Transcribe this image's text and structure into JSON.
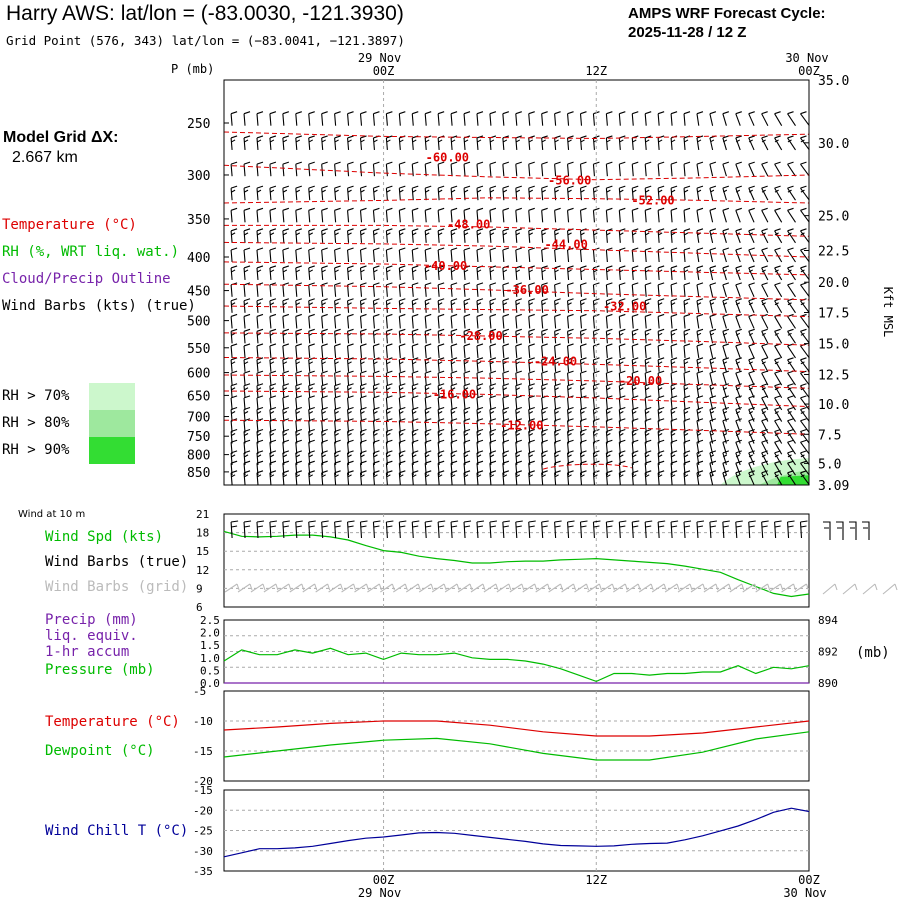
{
  "header": {
    "title": "Harry AWS:  lat/lon = (-83.0030, -121.3930)",
    "grid_point": "Grid Point (576, 343) lat/lon = (−83.0041, −121.3897)",
    "cycle_label": "AMPS WRF Forecast Cycle:",
    "cycle_value": "2025-11-28 / 12  Z",
    "model_grid_label": "Model Grid ΔX:",
    "model_grid_value": "2.667 km"
  },
  "colors": {
    "temperature": "#dd0000",
    "rh": "#00bb00",
    "cloud": "#7722aa",
    "wind_chill": "#000099",
    "rh70": "#ccf7cc",
    "rh80": "#9ee89e",
    "rh90": "#33dd33",
    "grid": "#aaaaaa",
    "wind_grid": "#bbbbbb"
  },
  "legends": {
    "profile": [
      {
        "label": "Temperature (°C)",
        "color": "#dd0000"
      },
      {
        "label": "RH (%, WRT liq. wat.)",
        "color": "#00bb00"
      },
      {
        "label": "Cloud/Precip Outline",
        "color": "#7722aa"
      },
      {
        "label": "Wind Barbs (kts) (true)",
        "color": "#000000"
      }
    ],
    "rh_boxes": [
      {
        "label": "RH > 70%",
        "color": "#ccf7cc"
      },
      {
        "label": "RH > 80%",
        "color": "#9ee89e"
      },
      {
        "label": "RH > 90%",
        "color": "#33dd33"
      }
    ],
    "wind_panel_title": "Wind at 10 m",
    "wind": [
      {
        "label": "Wind Spd (kts)",
        "color": "#00bb00"
      },
      {
        "label": "Wind Barbs (true)",
        "color": "#000000"
      },
      {
        "label": "Wind Barbs (grid)",
        "color": "#bbbbbb"
      }
    ],
    "precip": [
      {
        "label": "Precip (mm)",
        "color": "#7722aa"
      },
      {
        "label": "liq. equiv.",
        "color": "#7722aa"
      },
      {
        "label": "1-hr accum",
        "color": "#7722aa"
      },
      {
        "label": "Pressure (mb)",
        "color": "#00bb00"
      }
    ],
    "temp": [
      {
        "label": "Temperature (°C)",
        "color": "#dd0000"
      },
      {
        "label": "Dewpoint (°C)",
        "color": "#00bb00"
      }
    ],
    "chill": [
      {
        "label": "Wind Chill T (°C)",
        "color": "#000099"
      }
    ]
  },
  "chart_data": [
    {
      "type": "line",
      "name": "vertical-profile",
      "x_time_labels": [
        {
          "date": "29 Nov",
          "hour": "00Z",
          "hours": 12
        },
        {
          "date": "",
          "hour": "12Z",
          "hours": 24
        },
        {
          "date": "30 Nov",
          "hour": "00Z",
          "hours": 36
        }
      ],
      "x_range_hours": [
        3,
        36
      ],
      "y_left_title": "P (mb)",
      "y_left_ticks": [
        250,
        300,
        350,
        400,
        450,
        500,
        550,
        600,
        650,
        700,
        750,
        800,
        850
      ],
      "y_right_title": "Kft MSL",
      "y_right_ticks": [
        {
          "label": "35.0",
          "p": 215
        },
        {
          "label": "30.0",
          "p": 268
        },
        {
          "label": "25.0",
          "p": 346
        },
        {
          "label": "22.5",
          "p": 391
        },
        {
          "label": "20.0",
          "p": 437
        },
        {
          "label": "17.5",
          "p": 486
        },
        {
          "label": "15.0",
          "p": 542
        },
        {
          "label": "12.5",
          "p": 604
        },
        {
          "label": "10.0",
          "p": 670
        },
        {
          "label": "7.5",
          "p": 745
        },
        {
          "label": "5.0",
          "p": 825
        },
        {
          "label": "3.09",
          "p": 890
        }
      ],
      "p_range": [
        215,
        890
      ],
      "temperature_isotherms": [
        {
          "label": "-60.00",
          "lx": 15.6,
          "lp": 282,
          "series": [
            [
              3,
              258
            ],
            [
              12,
              262
            ],
            [
              18,
              263
            ],
            [
              24,
              264
            ],
            [
              30,
              262
            ],
            [
              36,
              260
            ]
          ]
        },
        {
          "label": "-56.00",
          "lx": 22.5,
          "lp": 306,
          "series": [
            [
              3,
              290
            ],
            [
              12,
              298
            ],
            [
              18,
              302
            ],
            [
              24,
              305
            ],
            [
              30,
              303
            ],
            [
              36,
              300
            ]
          ]
        },
        {
          "label": "-52.00",
          "lx": 27.2,
          "lp": 328,
          "series": [
            [
              3,
              331
            ],
            [
              12,
              328
            ],
            [
              18,
              325
            ],
            [
              24,
              326
            ],
            [
              30,
              328
            ],
            [
              36,
              331
            ]
          ]
        },
        {
          "label": "-48.00",
          "lx": 16.8,
          "lp": 357,
          "series": [
            [
              3,
              358
            ],
            [
              12,
              358
            ],
            [
              18,
              360
            ],
            [
              24,
              364
            ],
            [
              30,
              368
            ],
            [
              36,
              372
            ]
          ]
        },
        {
          "label": "-44.00",
          "lx": 22.3,
          "lp": 383,
          "series": [
            [
              3,
              380
            ],
            [
              12,
              382
            ],
            [
              18,
              385
            ],
            [
              24,
              390
            ],
            [
              30,
              395
            ],
            [
              36,
              400
            ]
          ]
        },
        {
          "label": "-40.00",
          "lx": 15.5,
          "lp": 413,
          "series": [
            [
              3,
              407
            ],
            [
              12,
              410
            ],
            [
              18,
              414
            ],
            [
              24,
              418
            ],
            [
              30,
              422
            ],
            [
              36,
              426
            ]
          ]
        },
        {
          "label": "-36.00",
          "lx": 20.1,
          "lp": 449,
          "series": [
            [
              3,
              440
            ],
            [
              12,
              444
            ],
            [
              18,
              449
            ],
            [
              24,
              455
            ],
            [
              30,
              460
            ],
            [
              36,
              465
            ]
          ]
        },
        {
          "label": "-32.00",
          "lx": 25.6,
          "lp": 476,
          "series": [
            [
              3,
              475
            ],
            [
              12,
              479
            ],
            [
              18,
              481
            ],
            [
              24,
              483
            ],
            [
              30,
              488
            ],
            [
              36,
              493
            ]
          ]
        },
        {
          "label": "-28.00",
          "lx": 17.5,
          "lp": 528,
          "series": [
            [
              3,
              522
            ],
            [
              12,
              524
            ],
            [
              18,
              528
            ],
            [
              24,
              532
            ],
            [
              30,
              538
            ],
            [
              36,
              545
            ]
          ]
        },
        {
          "label": "-24.00",
          "lx": 21.7,
          "lp": 577,
          "series": [
            [
              3,
              569
            ],
            [
              12,
              572
            ],
            [
              18,
              577
            ],
            [
              24,
              583
            ],
            [
              30,
              590
            ],
            [
              36,
              598
            ]
          ]
        },
        {
          "label": "-20.00",
          "lx": 26.5,
          "lp": 618,
          "series": [
            [
              3,
              605
            ],
            [
              12,
              608
            ],
            [
              18,
              612
            ],
            [
              24,
              618
            ],
            [
              30,
              626
            ],
            [
              36,
              634
            ]
          ]
        },
        {
          "label": "-16.00",
          "lx": 16.0,
          "lp": 648,
          "series": [
            [
              3,
              640
            ],
            [
              12,
              643
            ],
            [
              18,
              648
            ],
            [
              24,
              656
            ],
            [
              30,
              666
            ],
            [
              36,
              676
            ]
          ]
        },
        {
          "label": "-12.00",
          "lx": 19.8,
          "lp": 722,
          "series": [
            [
              3,
              709
            ],
            [
              12,
              712
            ],
            [
              18,
              718
            ],
            [
              24,
              726
            ],
            [
              30,
              735
            ],
            [
              36,
              745
            ]
          ]
        }
      ],
      "wind_barbs": "rows of wind barbs at each pressure level, every ~0.75 h",
      "rh_shading": [
        {
          "level": "RH > 70%",
          "region": "lowest levels after ~30Z"
        },
        {
          "level": "RH > 90%",
          "region": "near surface after ~33Z"
        }
      ]
    },
    {
      "type": "line",
      "name": "wind-10m",
      "ylim": [
        6,
        21
      ],
      "y_ticks": [
        6,
        9,
        12,
        15,
        18,
        21
      ],
      "series": [
        {
          "name": "Wind Spd (kts)",
          "color": "#00bb00",
          "x": [
            3,
            4,
            5,
            6,
            7,
            8,
            9,
            10,
            11,
            12,
            13,
            14,
            15,
            16,
            17,
            18,
            19,
            20,
            21,
            22,
            23,
            24,
            25,
            26,
            27,
            28,
            29,
            30,
            31,
            32,
            33,
            34,
            35,
            36
          ],
          "values": [
            18.2,
            17.4,
            17.3,
            17.4,
            17.6,
            17.6,
            17.3,
            16.8,
            15.9,
            15.1,
            14.8,
            14.2,
            13.8,
            13.5,
            13.1,
            13.1,
            13.3,
            13.4,
            13.4,
            13.6,
            13.7,
            13.8,
            13.6,
            13.4,
            13.2,
            13.0,
            12.6,
            12.1,
            11.6,
            10.4,
            9.3,
            8.2,
            7.7,
            8.1
          ]
        }
      ]
    },
    {
      "type": "line",
      "name": "precip-pressure",
      "y_left_ticks": [
        "0.0",
        "0.5",
        "1.0",
        "1.5",
        "2.0",
        "2.5"
      ],
      "y_right_ticks": [
        "890",
        "892",
        "894"
      ],
      "y_right_unit": "(mb)",
      "pressure_range": [
        890,
        894
      ],
      "series": [
        {
          "name": "Pressure (mb)",
          "color": "#00bb00",
          "x": [
            3,
            4,
            5,
            6,
            7,
            8,
            9,
            10,
            11,
            12,
            13,
            14,
            15,
            16,
            17,
            18,
            19,
            20,
            21,
            22,
            23,
            24,
            25,
            26,
            27,
            28,
            29,
            30,
            31,
            32,
            33,
            34,
            35,
            36
          ],
          "values": [
            891.4,
            892.1,
            891.8,
            891.8,
            892.1,
            891.9,
            892.2,
            891.8,
            891.9,
            891.5,
            891.9,
            891.8,
            891.8,
            891.9,
            891.6,
            891.5,
            891.5,
            891.4,
            891.2,
            890.9,
            890.5,
            890.1,
            890.6,
            890.6,
            890.5,
            890.6,
            890.6,
            890.7,
            890.7,
            891.1,
            890.6,
            891.0,
            890.9,
            891.1
          ]
        },
        {
          "name": "Precip (mm)",
          "color": "#7722aa",
          "x": [
            3,
            36
          ],
          "values": [
            0.0,
            0.0
          ]
        }
      ]
    },
    {
      "type": "line",
      "name": "temperature-dewpoint",
      "ylim": [
        -20,
        -5
      ],
      "y_ticks": [
        "-5",
        "-10",
        "-15",
        "-20"
      ],
      "series": [
        {
          "name": "Temperature (°C)",
          "color": "#dd0000",
          "x": [
            3,
            6,
            9,
            12,
            15,
            18,
            21,
            24,
            27,
            30,
            33,
            36
          ],
          "values": [
            -11.5,
            -11.0,
            -10.4,
            -10.0,
            -10.0,
            -10.7,
            -11.8,
            -12.5,
            -12.5,
            -12.0,
            -11.0,
            -10.0
          ]
        },
        {
          "name": "Dewpoint (°C)",
          "color": "#00bb00",
          "x": [
            3,
            6,
            9,
            12,
            15,
            18,
            21,
            24,
            27,
            30,
            33,
            36
          ],
          "values": [
            -16.0,
            -15.0,
            -14.0,
            -13.2,
            -12.9,
            -13.8,
            -15.4,
            -16.5,
            -16.5,
            -15.2,
            -13.0,
            -11.8
          ]
        }
      ]
    },
    {
      "type": "line",
      "name": "wind-chill",
      "ylim": [
        -35,
        -15
      ],
      "y_ticks": [
        "-15",
        "-20",
        "-25",
        "-30",
        "-35"
      ],
      "series": [
        {
          "name": "Wind Chill T (°C)",
          "color": "#000099",
          "x": [
            3,
            4,
            5,
            6,
            7,
            8,
            9,
            10,
            11,
            12,
            13,
            14,
            15,
            16,
            17,
            18,
            19,
            20,
            21,
            22,
            23,
            24,
            25,
            26,
            27,
            28,
            29,
            30,
            31,
            32,
            33,
            34,
            35,
            36
          ],
          "values": [
            -31.5,
            -30.5,
            -29.5,
            -29.5,
            -29.3,
            -28.9,
            -28.2,
            -27.5,
            -26.9,
            -26.6,
            -26.1,
            -25.6,
            -25.5,
            -25.7,
            -26.2,
            -26.7,
            -27.2,
            -27.7,
            -28.3,
            -28.7,
            -28.8,
            -28.9,
            -28.8,
            -28.4,
            -28.2,
            -28.1,
            -27.3,
            -26.3,
            -25.1,
            -23.9,
            -22.3,
            -20.5,
            -19.5,
            -20.3
          ]
        }
      ]
    }
  ]
}
